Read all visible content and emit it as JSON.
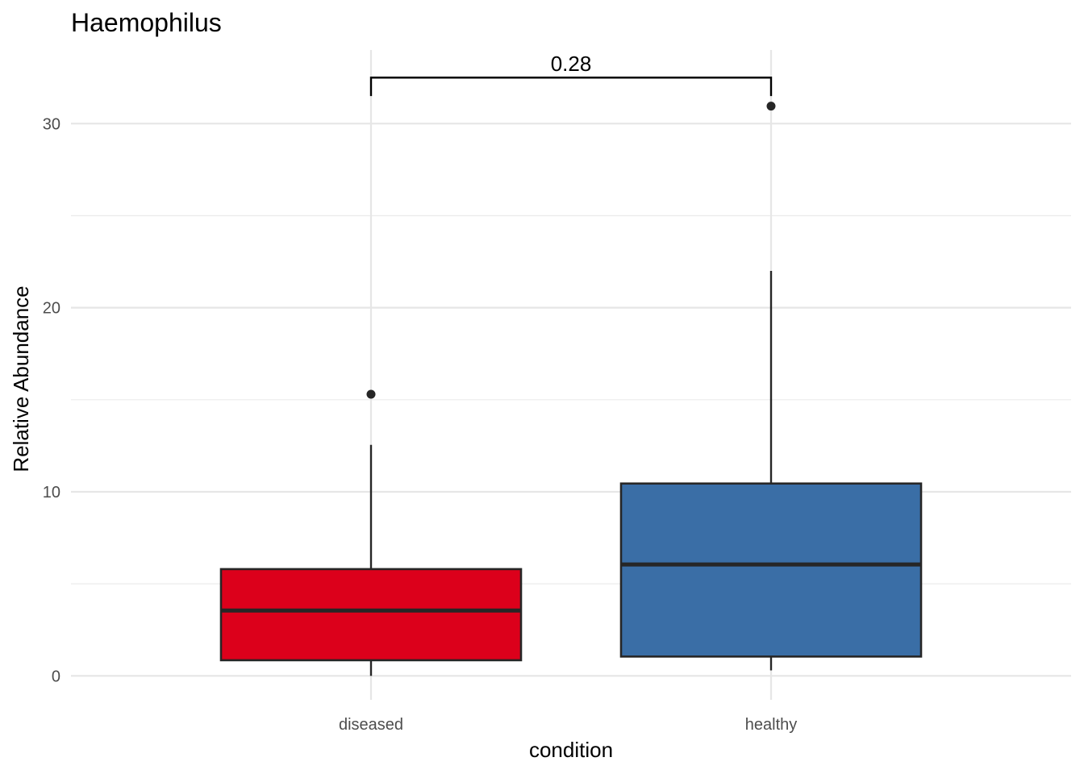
{
  "chart_data": {
    "type": "box",
    "title": "Haemophilus",
    "xlabel": "condition",
    "ylabel": "Relative Abundance",
    "categories": [
      "diseased",
      "healthy"
    ],
    "y_ticks": [
      0,
      10,
      20,
      30
    ],
    "y_tick_labels": [
      "0",
      "10",
      "20",
      "30"
    ],
    "ylim": [
      -1.3,
      34.0
    ],
    "grid": true,
    "boxes": [
      {
        "category": "diseased",
        "color": "#dc001b",
        "whisker_low": 0.0,
        "q1": 0.85,
        "median": 3.55,
        "q3": 5.8,
        "whisker_high": 12.55,
        "outliers": [
          15.3
        ]
      },
      {
        "category": "healthy",
        "color": "#3a6ea6",
        "whisker_low": 0.3,
        "q1": 1.05,
        "median": 6.05,
        "q3": 10.45,
        "whisker_high": 22.0,
        "outliers": [
          30.95
        ]
      }
    ],
    "annotation": {
      "label": "0.28",
      "from": "diseased",
      "to": "healthy",
      "y": 32.5,
      "tip_y": 31.5
    }
  }
}
